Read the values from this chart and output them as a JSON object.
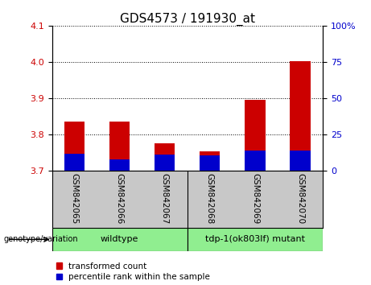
{
  "title": "GDS4573 / 191930_at",
  "samples": [
    "GSM842065",
    "GSM842066",
    "GSM842067",
    "GSM842068",
    "GSM842069",
    "GSM842070"
  ],
  "red_tops": [
    3.835,
    3.837,
    3.776,
    3.755,
    3.895,
    4.003
  ],
  "blue_tops": [
    3.747,
    3.732,
    3.746,
    3.742,
    3.757,
    3.757
  ],
  "bar_bottom": 3.7,
  "ylim": [
    3.7,
    4.1
  ],
  "yticks_left": [
    3.7,
    3.8,
    3.9,
    4.0,
    4.1
  ],
  "yticks_right": [
    0,
    25,
    50,
    75,
    100
  ],
  "xlabel_area_color": "#C8C8C8",
  "group_area_color": "#90EE90",
  "red_color": "#CC0000",
  "blue_color": "#0000CC",
  "bar_width": 0.45,
  "grid_color": "black",
  "title_fontsize": 11,
  "tick_fontsize": 8,
  "label_fontsize": 8,
  "legend_fontsize": 7.5,
  "genotype_label": "genotype/variation",
  "legend_items": [
    "transformed count",
    "percentile rank within the sample"
  ]
}
